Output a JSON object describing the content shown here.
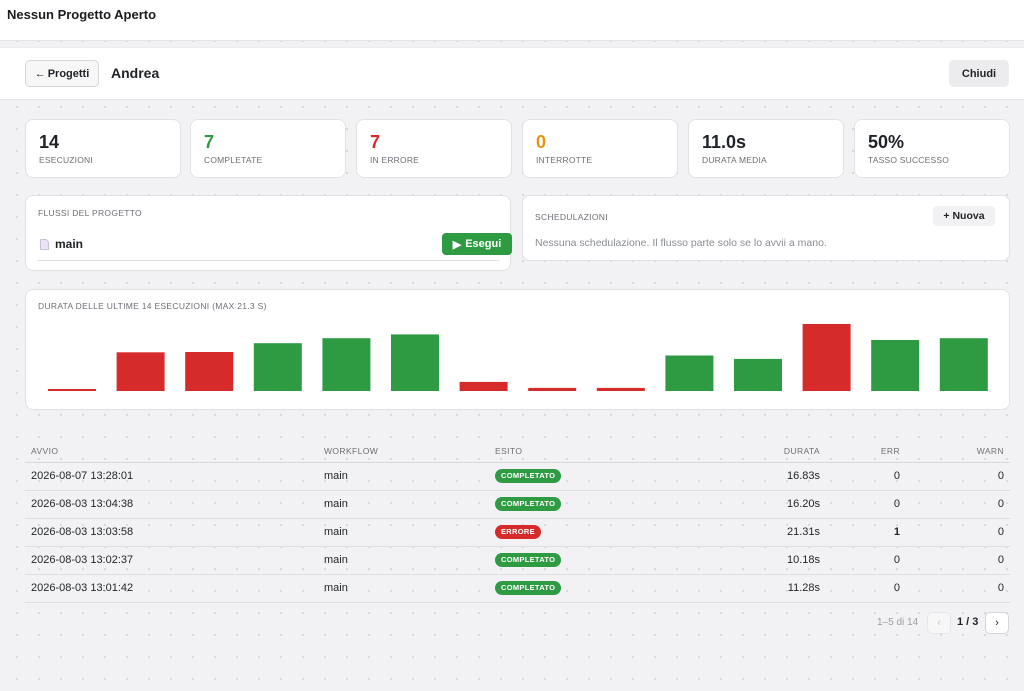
{
  "app": {
    "title": "Nessun Progetto Aperto"
  },
  "header": {
    "back_label": "Progetti",
    "project_name": "Andrea",
    "close_label": "Chiudi"
  },
  "stats": [
    {
      "value": "14",
      "label": "ESECUZIONI",
      "color": "#1f2328"
    },
    {
      "value": "7",
      "label": "COMPLETATE",
      "color": "#2e9b43"
    },
    {
      "value": "7",
      "label": "IN ERRORE",
      "color": "#d52b2b"
    },
    {
      "value": "0",
      "label": "INTERROTTE",
      "color": "#e59410"
    },
    {
      "value": "11.0s",
      "label": "DURATA MEDIA",
      "color": "#1f2328"
    },
    {
      "value": "50%",
      "label": "TASSO SUCCESSO",
      "color": "#1f2328"
    }
  ],
  "flows": {
    "title": "FLUSSI DEL PROGETTO",
    "items": [
      {
        "name": "main",
        "run_label": "Esegui"
      }
    ]
  },
  "schedules": {
    "title": "SCHEDULAZIONI",
    "new_label": "+ Nuova",
    "empty_text": "Nessuna schedulazione. Il flusso parte solo se lo avvii a mano."
  },
  "chart_data": {
    "type": "bar",
    "title": "DURATA DELLE ULTIME 14 ESECUZIONI (MAX 21.3 S)",
    "max": 21.3,
    "values": [
      0.4,
      12.3,
      12.4,
      15.2,
      16.8,
      18.0,
      2.9,
      1.0,
      1.0,
      11.3,
      10.2,
      21.3,
      16.2,
      16.8
    ],
    "status": [
      "error",
      "error",
      "error",
      "ok",
      "ok",
      "ok",
      "error",
      "error",
      "error",
      "ok",
      "ok",
      "error",
      "ok",
      "ok"
    ],
    "colors": {
      "ok": "#2e9b43",
      "error": "#d52b2b"
    }
  },
  "table": {
    "headers": {
      "avvio": "AVVIO",
      "workflow": "WORKFLOW",
      "esito": "ESITO",
      "durata": "DURATA",
      "err": "ERR",
      "warn": "WARN"
    },
    "rows": [
      {
        "avvio": "2026-08-07 13:28:01",
        "workflow": "main",
        "esito": "COMPLETATO",
        "status": "ok",
        "durata": "16.83s",
        "err": "0",
        "warn": "0"
      },
      {
        "avvio": "2026-08-03 13:04:38",
        "workflow": "main",
        "esito": "COMPLETATO",
        "status": "ok",
        "durata": "16.20s",
        "err": "0",
        "warn": "0"
      },
      {
        "avvio": "2026-08-03 13:03:58",
        "workflow": "main",
        "esito": "ERRORE",
        "status": "error",
        "durata": "21.31s",
        "err": "1",
        "warn": "0"
      },
      {
        "avvio": "2026-08-03 13:02:37",
        "workflow": "main",
        "esito": "COMPLETATO",
        "status": "ok",
        "durata": "10.18s",
        "err": "0",
        "warn": "0"
      },
      {
        "avvio": "2026-08-03 13:01:42",
        "workflow": "main",
        "esito": "COMPLETATO",
        "status": "ok",
        "durata": "11.28s",
        "err": "0",
        "warn": "0"
      }
    ]
  },
  "pagination": {
    "info": "1–5 di 14",
    "current": "1 / 3",
    "prev": "‹",
    "next": "›"
  }
}
